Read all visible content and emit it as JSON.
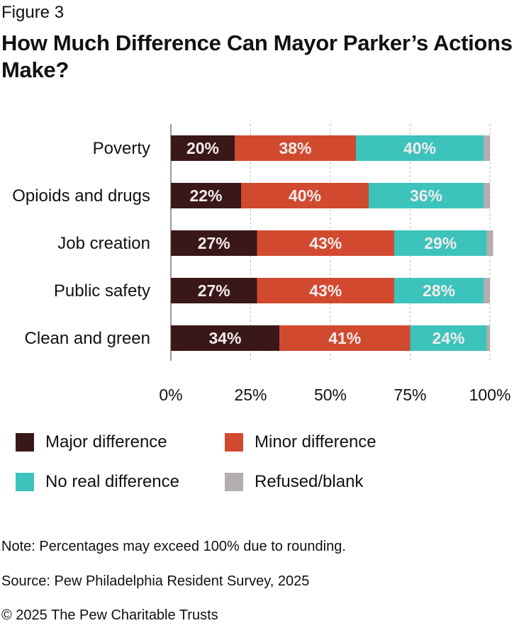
{
  "figure_label": "Figure 3",
  "title": "How Much Difference Can Mayor Parker’s Actions Make?",
  "chart_data": {
    "type": "bar",
    "orientation": "horizontal",
    "stacked": true,
    "categories": [
      "Poverty",
      "Opioids and drugs",
      "Job creation",
      "Public safety",
      "Clean and green"
    ],
    "series": [
      {
        "name": "Major difference",
        "color": "#3a1718",
        "values": [
          20,
          22,
          27,
          27,
          34
        ]
      },
      {
        "name": "Minor difference",
        "color": "#d14a2f",
        "values": [
          38,
          40,
          43,
          43,
          41
        ]
      },
      {
        "name": "No real difference",
        "color": "#3cc3bc",
        "values": [
          40,
          36,
          29,
          28,
          24
        ]
      },
      {
        "name": "Refused/blank",
        "color": "#b3adad",
        "values": [
          2,
          2,
          2,
          2,
          1
        ]
      }
    ],
    "data_labels": [
      [
        "20%",
        "22%",
        "27%",
        "27%",
        "34%"
      ],
      [
        "38%",
        "40%",
        "43%",
        "43%",
        "41%"
      ],
      [
        "40%",
        "36%",
        "29%",
        "28%",
        "24%"
      ]
    ],
    "x_ticks": [
      "0%",
      "25%",
      "50%",
      "75%",
      "100%"
    ],
    "xlim": [
      0,
      100
    ],
    "grid": true,
    "legend_position": "bottom"
  },
  "notes": {
    "note": "Note: Percentages may exceed 100% due to rounding.",
    "source": "Source: Pew Philadelphia Resident Survey, 2025",
    "copyright": "© 2025 The Pew Charitable Trusts"
  }
}
